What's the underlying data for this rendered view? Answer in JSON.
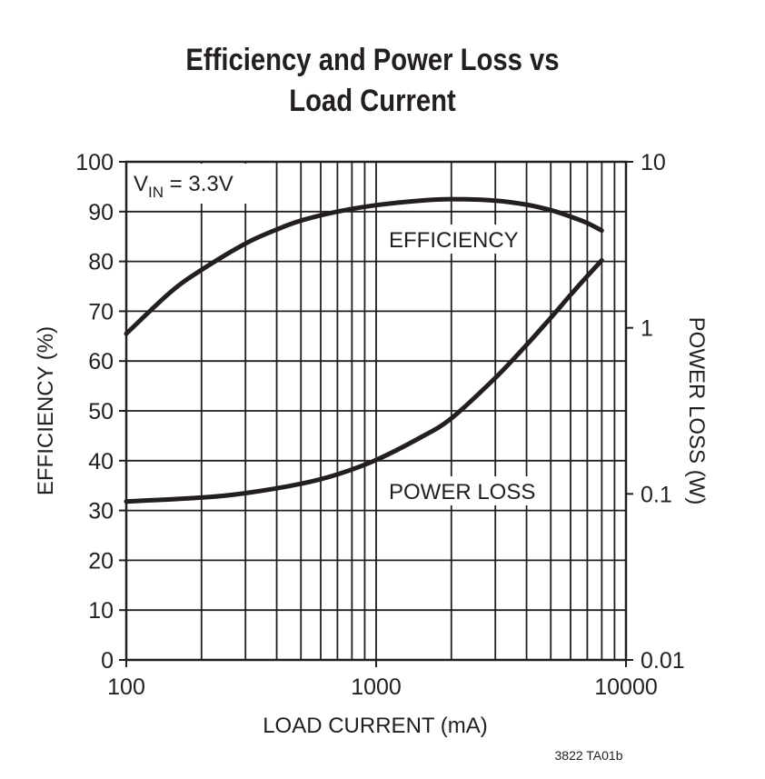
{
  "chart_data": {
    "type": "line",
    "title_line1": "Efficiency and Power Loss vs",
    "title_line2": "Load Current",
    "xlabel": "LOAD CURRENT (mA)",
    "ylabel_left": "EFFICIENCY (%)",
    "ylabel_right": "POWER LOSS (W)",
    "x_scale": "log",
    "xlim": [
      100,
      10000
    ],
    "ylim_left": [
      0,
      100
    ],
    "ylim_right": [
      0.01,
      10
    ],
    "y_right_scale": "log",
    "x_tick_labels": [
      "100",
      "1000",
      "10000"
    ],
    "y_left_tick_labels": [
      "0",
      "10",
      "20",
      "30",
      "40",
      "50",
      "60",
      "70",
      "80",
      "90",
      "100"
    ],
    "y_right_tick_labels": [
      "0.01",
      "0.1",
      "1",
      "10"
    ],
    "annotation_v": "V",
    "annotation_sub": "IN",
    "annotation_rest": " = 3.3V",
    "figure_code": "3822 TA01b",
    "series": [
      {
        "name": "EFFICIENCY",
        "axis": "left",
        "x": [
          100,
          150,
          200,
          300,
          400,
          500,
          700,
          1000,
          1500,
          2000,
          3000,
          4000,
          5000,
          6000,
          7000,
          8000
        ],
        "y": [
          65.5,
          73.8,
          78.3,
          83.6,
          86.4,
          88.2,
          90.0,
          91.3,
          92.2,
          92.5,
          92.2,
          91.4,
          90.3,
          89.0,
          87.7,
          86.2
        ]
      },
      {
        "name": "POWER LOSS",
        "axis": "right",
        "x": [
          100,
          200,
          300,
          500,
          700,
          1000,
          1500,
          2000,
          3000,
          4000,
          5000,
          6000,
          7000,
          8000
        ],
        "y": [
          0.09,
          0.095,
          0.101,
          0.115,
          0.131,
          0.16,
          0.218,
          0.285,
          0.5,
          0.79,
          1.15,
          1.58,
          2.05,
          2.55
        ]
      }
    ]
  }
}
